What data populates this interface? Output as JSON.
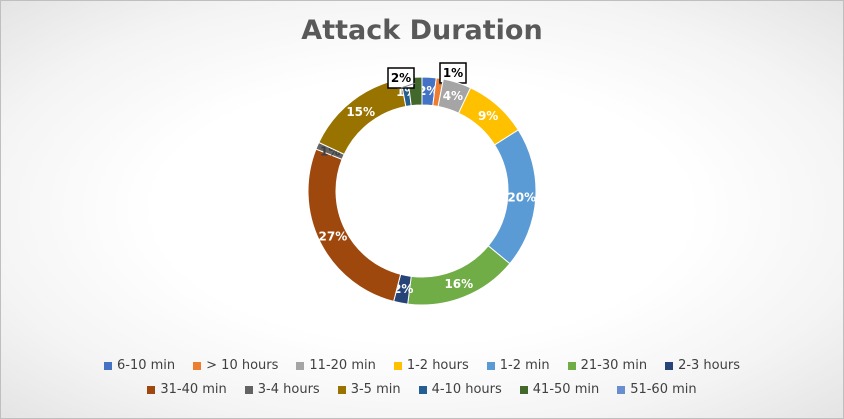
{
  "chart_data": {
    "type": "pie",
    "donut": true,
    "title": "Attack Duration",
    "series": [
      {
        "name": "6-10 min",
        "value": 2,
        "label": "2%",
        "color": "#4472C4"
      },
      {
        "name": "> 10 hours",
        "value": 1,
        "label": "1%",
        "color": "#ED7D31"
      },
      {
        "name": "11-20 min",
        "value": 4,
        "label": "4%",
        "color": "#A5A5A5"
      },
      {
        "name": "1-2 hours",
        "value": 9,
        "label": "9%",
        "color": "#FFC000"
      },
      {
        "name": "1-2 min",
        "value": 20,
        "label": "20%",
        "color": "#5B9BD5"
      },
      {
        "name": "21-30 min",
        "value": 16,
        "label": "16%",
        "color": "#70AD47"
      },
      {
        "name": "2-3 hours",
        "value": 2,
        "label": "2%",
        "color": "#264478"
      },
      {
        "name": "31-40 min",
        "value": 27,
        "label": "27%",
        "color": "#9E480E"
      },
      {
        "name": "3-4 hours",
        "value": 1,
        "label": "1%",
        "color": "#636363"
      },
      {
        "name": "3-5 min",
        "value": 15,
        "label": "15%",
        "color": "#997300"
      },
      {
        "name": "4-10 hours",
        "value": 1,
        "label": "1%",
        "color": "#255E91"
      },
      {
        "name": "41-50 min",
        "value": 2,
        "label": "2%",
        "color": "#43682B"
      },
      {
        "name": "51-60 min",
        "value": 0,
        "label": "",
        "color": "#698ED0"
      }
    ],
    "legend_position": "bottom"
  }
}
